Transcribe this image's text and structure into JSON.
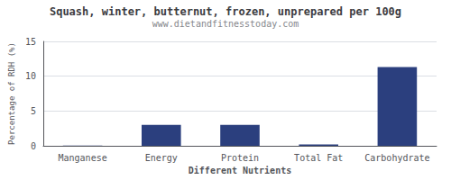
{
  "chart_data": {
    "type": "bar",
    "title": "Squash, winter, butternut, frozen, unprepared per 100g",
    "subtitle": "www.dietandfitnesstoday.com",
    "categories": [
      "Manganese",
      "Energy",
      "Protein",
      "Total Fat",
      "Carbohydrate"
    ],
    "values": [
      0.04,
      3.0,
      3.0,
      0.2,
      11.3
    ],
    "color": "#2b3f7e",
    "xlabel": "Different Nutrients",
    "ylabel": "Percentage of RDH (%)",
    "ylim": [
      0,
      15
    ],
    "yticks": [
      0,
      5,
      10,
      15
    ],
    "grid": true
  }
}
